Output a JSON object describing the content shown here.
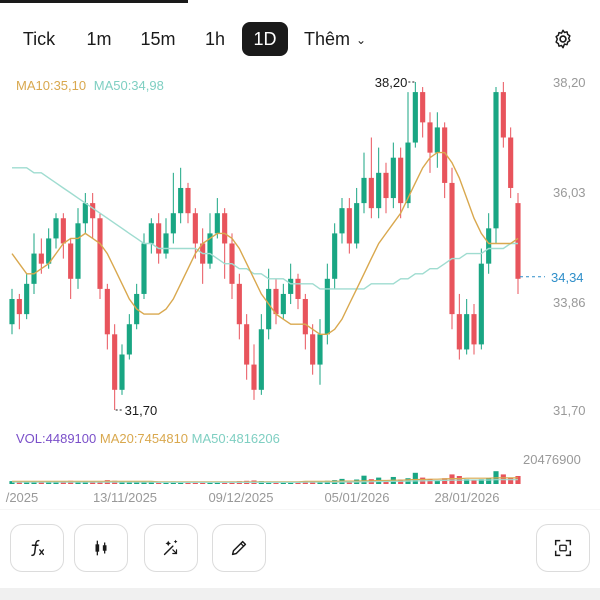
{
  "tabs": [
    {
      "label": "Tick",
      "active": false
    },
    {
      "label": "1m",
      "active": false
    },
    {
      "label": "15m",
      "active": false
    },
    {
      "label": "1h",
      "active": false
    },
    {
      "label": "1D",
      "active": true
    }
  ],
  "more_label": "Thêm",
  "indicators": {
    "ma10": "MA10:35,10",
    "ma50": "MA50:34,98"
  },
  "volume_indicators": {
    "vol": "VOL:4489100",
    "ma20": "MA20:7454810",
    "ma50": "MA50:4816206"
  },
  "colors": {
    "up": "#19a683",
    "down": "#e8545c",
    "ma10": "#d9a84e",
    "ma50": "#9fdcd0",
    "vol_label": "#7a4fc9",
    "current": "#2e8ec9",
    "axis_text": "#999999"
  },
  "icons": [
    "gear-icon",
    "chevron-down-icon",
    "function-icon",
    "candlestick-icon",
    "magic-wand-icon",
    "pencil-icon",
    "fullscreen-icon"
  ],
  "chart_data": {
    "type": "candlestick",
    "y_ticks": [
      "38,20",
      "36,03",
      "33,86",
      "31,70"
    ],
    "y_range": [
      31.7,
      38.2
    ],
    "x_ticks": [
      "/2025",
      "13/11/2025",
      "09/12/2025",
      "05/01/2026",
      "28/01/2026"
    ],
    "current_price": "34,34",
    "high_label": "38,20",
    "low_label": "31,70",
    "volume_axis_label": "20476900",
    "candles": [
      [
        33.4,
        33.9,
        33.2,
        34.1
      ],
      [
        33.9,
        33.6,
        33.3,
        34.0
      ],
      [
        33.6,
        34.2,
        33.5,
        34.4
      ],
      [
        34.2,
        34.8,
        34.0,
        35.2
      ],
      [
        34.8,
        34.6,
        34.4,
        35.1
      ],
      [
        34.6,
        35.1,
        34.5,
        35.3
      ],
      [
        35.1,
        35.5,
        34.9,
        35.6
      ],
      [
        35.5,
        35.0,
        34.7,
        35.6
      ],
      [
        35.0,
        34.3,
        33.9,
        35.1
      ],
      [
        34.3,
        35.4,
        34.1,
        35.7
      ],
      [
        35.4,
        35.8,
        35.2,
        36.0
      ],
      [
        35.8,
        35.5,
        35.1,
        36.0
      ],
      [
        35.5,
        34.1,
        33.9,
        35.6
      ],
      [
        34.1,
        33.2,
        32.9,
        34.2
      ],
      [
        33.2,
        32.1,
        31.7,
        33.4
      ],
      [
        32.1,
        32.8,
        32.0,
        33.0
      ],
      [
        32.8,
        33.4,
        32.7,
        33.6
      ],
      [
        33.4,
        34.0,
        33.3,
        34.2
      ],
      [
        34.0,
        35.0,
        33.9,
        35.2
      ],
      [
        35.0,
        35.4,
        34.8,
        35.5
      ],
      [
        35.4,
        34.8,
        34.6,
        35.6
      ],
      [
        34.8,
        35.2,
        34.7,
        35.5
      ],
      [
        35.2,
        35.6,
        35.0,
        36.4
      ],
      [
        35.6,
        36.1,
        35.4,
        36.5
      ],
      [
        36.1,
        35.6,
        35.4,
        36.2
      ],
      [
        35.6,
        35.0,
        34.7,
        35.7
      ],
      [
        35.0,
        34.6,
        34.2,
        35.3
      ],
      [
        34.6,
        35.2,
        34.5,
        35.6
      ],
      [
        35.2,
        35.6,
        35.1,
        35.9
      ],
      [
        35.6,
        35.0,
        34.3,
        35.7
      ],
      [
        35.0,
        34.2,
        33.9,
        35.2
      ],
      [
        34.2,
        33.4,
        33.1,
        34.4
      ],
      [
        33.4,
        32.6,
        32.3,
        33.6
      ],
      [
        32.6,
        32.1,
        31.9,
        33.0
      ],
      [
        32.1,
        33.3,
        32.0,
        33.6
      ],
      [
        33.3,
        34.1,
        33.1,
        34.5
      ],
      [
        34.1,
        33.6,
        33.4,
        34.3
      ],
      [
        33.6,
        34.0,
        33.5,
        34.2
      ],
      [
        34.0,
        34.3,
        33.8,
        34.6
      ],
      [
        34.3,
        33.9,
        33.7,
        34.4
      ],
      [
        33.9,
        33.2,
        32.9,
        34.0
      ],
      [
        33.2,
        32.6,
        32.4,
        33.4
      ],
      [
        32.6,
        33.2,
        32.2,
        33.5
      ],
      [
        33.2,
        34.3,
        33.0,
        34.6
      ],
      [
        34.3,
        35.2,
        34.1,
        35.4
      ],
      [
        35.2,
        35.7,
        35.0,
        35.9
      ],
      [
        35.7,
        35.0,
        34.8,
        35.9
      ],
      [
        35.0,
        35.8,
        34.9,
        36.1
      ],
      [
        35.8,
        36.3,
        35.6,
        36.8
      ],
      [
        36.3,
        35.7,
        35.5,
        37.1
      ],
      [
        35.7,
        36.4,
        35.5,
        36.9
      ],
      [
        36.4,
        35.9,
        35.6,
        36.6
      ],
      [
        35.9,
        36.7,
        35.7,
        37.0
      ],
      [
        36.7,
        35.8,
        35.5,
        36.9
      ],
      [
        35.8,
        37.0,
        35.7,
        38.0
      ],
      [
        37.0,
        38.0,
        36.9,
        38.2
      ],
      [
        38.0,
        37.4,
        37.1,
        38.1
      ],
      [
        37.4,
        36.8,
        36.4,
        37.6
      ],
      [
        36.8,
        37.3,
        36.5,
        37.6
      ],
      [
        37.3,
        36.2,
        35.9,
        37.4
      ],
      [
        36.2,
        33.6,
        33.3,
        36.5
      ],
      [
        33.6,
        32.9,
        32.7,
        34.0
      ],
      [
        32.9,
        33.6,
        32.8,
        33.9
      ],
      [
        33.6,
        33.0,
        32.8,
        33.8
      ],
      [
        33.0,
        34.6,
        32.9,
        34.9
      ],
      [
        34.6,
        35.3,
        34.4,
        35.6
      ],
      [
        35.3,
        38.0,
        35.0,
        38.1
      ],
      [
        38.0,
        37.1,
        36.9,
        38.2
      ],
      [
        37.1,
        36.1,
        35.9,
        37.3
      ],
      [
        35.8,
        34.3,
        34.0,
        36.0
      ]
    ],
    "volumes": [
      0.09,
      0.07,
      0.08,
      0.06,
      0.05,
      0.07,
      0.06,
      0.08,
      0.1,
      0.07,
      0.06,
      0.05,
      0.08,
      0.12,
      0.1,
      0.07,
      0.06,
      0.07,
      0.09,
      0.06,
      0.05,
      0.05,
      0.08,
      0.07,
      0.05,
      0.06,
      0.05,
      0.06,
      0.05,
      0.07,
      0.08,
      0.09,
      0.1,
      0.11,
      0.09,
      0.08,
      0.05,
      0.05,
      0.06,
      0.05,
      0.07,
      0.08,
      0.06,
      0.1,
      0.12,
      0.16,
      0.1,
      0.14,
      0.26,
      0.15,
      0.2,
      0.12,
      0.22,
      0.14,
      0.18,
      0.35,
      0.2,
      0.15,
      0.12,
      0.18,
      0.3,
      0.25,
      0.15,
      0.12,
      0.15,
      0.18,
      0.4,
      0.3,
      0.2,
      0.25
    ],
    "ma10": [
      34.8,
      34.6,
      34.4,
      34.4,
      34.5,
      34.6,
      34.8,
      35.0,
      35.1,
      35.1,
      35.2,
      35.1,
      35.0,
      34.8,
      34.5,
      34.2,
      33.9,
      33.7,
      33.6,
      33.6,
      33.6,
      33.7,
      33.9,
      34.2,
      34.5,
      34.8,
      35.0,
      35.1,
      35.2,
      35.2,
      35.1,
      34.9,
      34.6,
      34.3,
      34.0,
      33.8,
      33.6,
      33.5,
      33.4,
      33.4,
      33.4,
      33.3,
      33.2,
      33.2,
      33.3,
      33.5,
      33.8,
      34.1,
      34.4,
      34.7,
      35.0,
      35.2,
      35.4,
      35.6,
      35.9,
      36.2,
      36.5,
      36.7,
      36.8,
      36.8,
      36.6,
      36.3,
      35.9,
      35.5,
      35.2,
      35.0,
      35.0,
      35.0,
      35.0,
      35.1
    ],
    "ma50": [
      36.5,
      36.5,
      36.5,
      36.4,
      36.4,
      36.3,
      36.2,
      36.1,
      36.0,
      35.9,
      35.8,
      35.7,
      35.6,
      35.5,
      35.4,
      35.3,
      35.2,
      35.1,
      35.0,
      35.0,
      34.9,
      34.9,
      34.9,
      34.9,
      34.9,
      34.9,
      34.8,
      34.8,
      34.7,
      34.6,
      34.6,
      34.5,
      34.5,
      34.4,
      34.4,
      34.3,
      34.3,
      34.3,
      34.2,
      34.2,
      34.2,
      34.2,
      34.1,
      34.1,
      34.1,
      34.1,
      34.1,
      34.1,
      34.1,
      34.2,
      34.2,
      34.2,
      34.2,
      34.3,
      34.3,
      34.4,
      34.4,
      34.5,
      34.5,
      34.6,
      34.7,
      34.7,
      34.8,
      34.8,
      34.8,
      34.9,
      34.9,
      34.9,
      35.0,
      35.0
    ],
    "vol_ma": [
      0.08,
      0.08,
      0.08,
      0.08,
      0.08,
      0.08,
      0.08,
      0.08,
      0.08,
      0.08,
      0.08,
      0.08,
      0.08,
      0.08,
      0.08,
      0.08,
      0.08,
      0.08,
      0.08,
      0.08,
      0.07,
      0.07,
      0.07,
      0.07,
      0.07,
      0.07,
      0.07,
      0.07,
      0.07,
      0.07,
      0.07,
      0.07,
      0.07,
      0.07,
      0.07,
      0.07,
      0.07,
      0.07,
      0.07,
      0.07,
      0.08,
      0.08,
      0.08,
      0.08,
      0.08,
      0.09,
      0.09,
      0.09,
      0.1,
      0.1,
      0.11,
      0.11,
      0.12,
      0.12,
      0.13,
      0.14,
      0.14,
      0.15,
      0.15,
      0.16,
      0.17,
      0.17,
      0.18,
      0.18,
      0.18,
      0.18,
      0.19,
      0.19,
      0.19,
      0.19
    ]
  }
}
